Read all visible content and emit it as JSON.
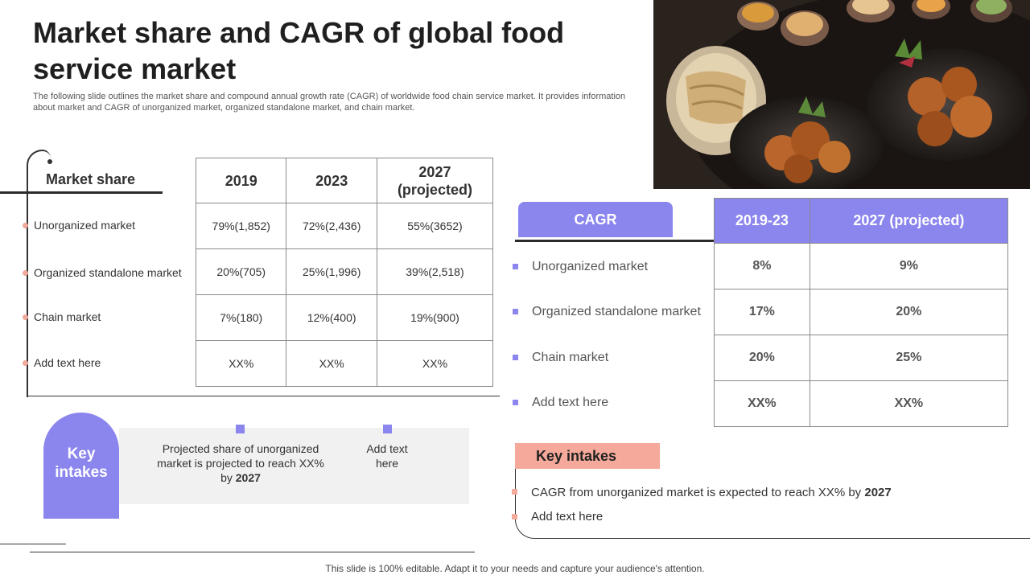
{
  "title": "Market share and CAGR of global food service market",
  "subtitle": "The following slide outlines the market share and compound annual growth rate (CAGR) of worldwide food chain service market. It provides information about market and CAGR of unorganized market, organized standalone market, and chain market.",
  "market_share": {
    "header": "Market share",
    "columns": [
      "2019",
      "2023",
      "2027\n(projected)"
    ],
    "rows": [
      {
        "label": "Unorganized market",
        "values": [
          "79%(1,852)",
          "72%(2,436)",
          "55%(3652)"
        ]
      },
      {
        "label": "Organized standalone market",
        "values": [
          "20%(705)",
          "25%(1,996)",
          "39%(2,518)"
        ]
      },
      {
        "label": "Chain market",
        "values": [
          "7%(180)",
          "12%(400)",
          "19%(900)"
        ]
      },
      {
        "label": "Add text here",
        "values": [
          "XX%",
          "XX%",
          "XX%"
        ]
      }
    ]
  },
  "key_intakes_left": {
    "title": "Key intakes",
    "item1_text": "Projected share of unorganized market is projected to reach XX% by",
    "item1_bold": "2027",
    "item2_text": "Add text here"
  },
  "cagr": {
    "header": "CAGR",
    "columns": [
      "2019-23",
      "2027 (projected)"
    ],
    "rows": [
      {
        "label": "Unorganized market",
        "values": [
          "8%",
          "9%"
        ]
      },
      {
        "label": "Organized standalone market",
        "values": [
          "17%",
          "20%"
        ]
      },
      {
        "label": "Chain market",
        "values": [
          "20%",
          "25%"
        ]
      },
      {
        "label": "Add text here",
        "values": [
          "XX%",
          "XX%"
        ]
      }
    ]
  },
  "key_intakes_right": {
    "title": "Key intakes",
    "item1_text": "CAGR from unorganized market is expected to reach XX% by",
    "item1_bold": "2027",
    "item2_text": "Add text here"
  },
  "footer": "This slide is 100% editable. Adapt it to your needs and capture your audience's attention.",
  "colors": {
    "accent_purple": "#8b85ee",
    "accent_salmon": "#f5a99a"
  }
}
